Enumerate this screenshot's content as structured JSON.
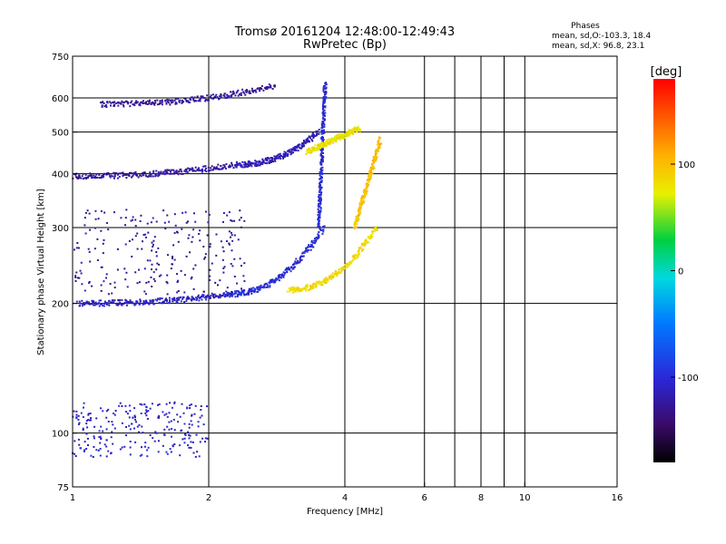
{
  "chart_data": {
    "type": "scatter",
    "title": "Tromsø 20161204 12:48:00-12:49:43",
    "subtitle": "RwPretec (Bp)",
    "xlabel": "Frequency [MHz]",
    "ylabel": "Stationary phase Virtual Height [km]",
    "x_scale": "log",
    "y_scale": "log",
    "xlim": [
      1,
      16
    ],
    "ylim": [
      75,
      750
    ],
    "x_ticks": [
      1,
      2,
      4,
      6,
      8,
      10,
      16
    ],
    "y_ticks": [
      75,
      100,
      200,
      300,
      400,
      500,
      600,
      750
    ],
    "x_gridlines": [
      2,
      4,
      6,
      7,
      8,
      9,
      10
    ],
    "y_gridlines": [
      100,
      200,
      300,
      400,
      500,
      600
    ],
    "grid": true,
    "info": {
      "heading": "Phases",
      "line1": "mean, sd,O:-103.3,  18.4",
      "line2": "mean, sd,X:  96.8,  23.1"
    },
    "colorbar": {
      "label": "[deg]",
      "range": [
        -180,
        180
      ],
      "ticks": [
        100,
        0,
        -100
      ],
      "colormap": "rainbow"
    },
    "series": [
      {
        "id": "o-trace-low-E",
        "x_range": [
          1.03,
          2.2
        ],
        "y_range": [
          200,
          210
        ],
        "phase": -110
      },
      {
        "id": "o-trace-F2",
        "x_range": [
          2.2,
          3.6
        ],
        "y_range": [
          210,
          300
        ],
        "phase": -100
      },
      {
        "id": "o-trace-cusp",
        "x_range": [
          3.5,
          3.62
        ],
        "y_range": [
          300,
          650
        ],
        "phase": -100
      },
      {
        "id": "x-trace-F2",
        "x_range": [
          3.0,
          4.7
        ],
        "y_range": [
          215,
          300
        ],
        "phase": 85
      },
      {
        "id": "x-trace-upper",
        "x_range": [
          4.2,
          4.8
        ],
        "y_range": [
          300,
          480
        ],
        "phase": 100
      },
      {
        "id": "echo-400",
        "x_range": [
          1.0,
          2.3
        ],
        "y_range": [
          395,
          420
        ],
        "phase": -125
      },
      {
        "id": "echo-450",
        "x_range": [
          2.3,
          3.5
        ],
        "y_range": [
          420,
          500
        ],
        "phase": -115
      },
      {
        "id": "echo-600",
        "x_range": [
          1.15,
          2.8
        ],
        "y_range": [
          580,
          640
        ],
        "phase": -125
      },
      {
        "id": "echo-500-upper",
        "x_range": [
          3.3,
          4.3
        ],
        "y_range": [
          450,
          510
        ],
        "phase": 80
      },
      {
        "id": "spread-F",
        "x_range": [
          1.0,
          2.4
        ],
        "y_range": [
          210,
          330
        ],
        "phase": -125
      },
      {
        "id": "low-echoes",
        "x_range": [
          1.0,
          2.0
        ],
        "y_range": [
          88,
          118
        ],
        "phase": -105
      }
    ]
  }
}
